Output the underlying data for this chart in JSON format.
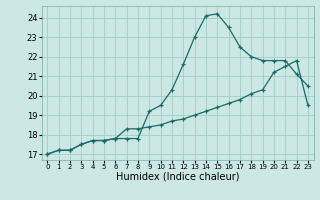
{
  "title": "",
  "xlabel": "Humidex (Indice chaleur)",
  "ylabel": "",
  "background_color": "#cce8e4",
  "grid_color": "#aacfcb",
  "line_color": "#1a6b6b",
  "x": [
    0,
    1,
    2,
    3,
    4,
    5,
    6,
    7,
    8,
    9,
    10,
    11,
    12,
    13,
    14,
    15,
    16,
    17,
    18,
    19,
    20,
    21,
    22,
    23
  ],
  "line1_y": [
    17.0,
    17.2,
    17.2,
    17.5,
    17.7,
    17.7,
    17.8,
    17.8,
    17.8,
    19.2,
    19.5,
    20.3,
    21.6,
    23.0,
    24.1,
    24.2,
    23.5,
    22.5,
    22.0,
    21.8,
    21.8,
    21.8,
    21.1,
    20.5
  ],
  "line2_y": [
    17.0,
    17.2,
    17.2,
    17.5,
    17.7,
    17.7,
    17.8,
    18.3,
    18.3,
    18.4,
    18.5,
    18.7,
    18.8,
    19.0,
    19.2,
    19.4,
    19.6,
    19.8,
    20.1,
    20.3,
    21.2,
    21.5,
    21.8,
    19.5
  ],
  "xlim": [
    -0.5,
    23.5
  ],
  "ylim": [
    16.7,
    24.6
  ],
  "yticks": [
    17,
    18,
    19,
    20,
    21,
    22,
    23,
    24
  ],
  "xticks": [
    0,
    1,
    2,
    3,
    4,
    5,
    6,
    7,
    8,
    9,
    10,
    11,
    12,
    13,
    14,
    15,
    16,
    17,
    18,
    19,
    20,
    21,
    22,
    23
  ],
  "xtick_fontsize": 5.0,
  "ytick_fontsize": 6.0,
  "xlabel_fontsize": 7.0,
  "marker_size": 3.5,
  "linewidth": 0.9
}
